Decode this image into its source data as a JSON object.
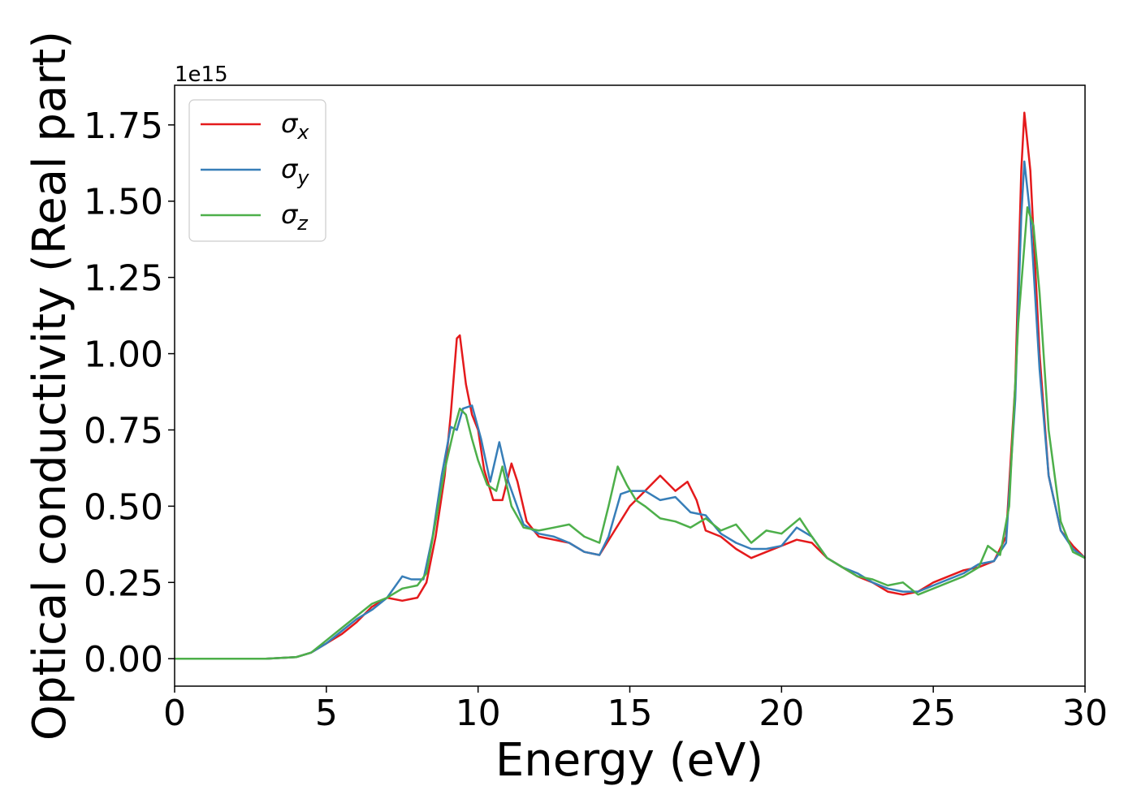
{
  "chart_data": {
    "type": "line",
    "xlabel": "Energy (eV)",
    "ylabel": "Optical conductivity (Real part)",
    "y_offset_label": "1e15",
    "xlim": [
      0,
      30
    ],
    "ylim": [
      -0.09,
      1.88
    ],
    "x_ticks": [
      0,
      5,
      10,
      15,
      20,
      25,
      30
    ],
    "x_tick_labels": [
      "0",
      "5",
      "10",
      "15",
      "20",
      "25",
      "30"
    ],
    "y_ticks": [
      0.0,
      0.25,
      0.5,
      0.75,
      1.0,
      1.25,
      1.5,
      1.75
    ],
    "y_tick_labels": [
      "0.00",
      "0.25",
      "0.50",
      "0.75",
      "1.00",
      "1.25",
      "1.50",
      "1.75"
    ],
    "grid": false,
    "legend_position": "top-left",
    "series": [
      {
        "name": "σ",
        "subscript": "x",
        "color": "#e41a1c",
        "points": [
          [
            0,
            0
          ],
          [
            1,
            0
          ],
          [
            2,
            0
          ],
          [
            3,
            0
          ],
          [
            4,
            0.005
          ],
          [
            4.5,
            0.02
          ],
          [
            5,
            0.05
          ],
          [
            5.5,
            0.08
          ],
          [
            6,
            0.12
          ],
          [
            6.5,
            0.17
          ],
          [
            7,
            0.2
          ],
          [
            7.5,
            0.19
          ],
          [
            8,
            0.2
          ],
          [
            8.3,
            0.25
          ],
          [
            8.6,
            0.4
          ],
          [
            8.9,
            0.6
          ],
          [
            9.1,
            0.8
          ],
          [
            9.3,
            1.05
          ],
          [
            9.4,
            1.06
          ],
          [
            9.6,
            0.9
          ],
          [
            9.8,
            0.8
          ],
          [
            10,
            0.75
          ],
          [
            10.2,
            0.62
          ],
          [
            10.5,
            0.52
          ],
          [
            10.8,
            0.52
          ],
          [
            11.1,
            0.64
          ],
          [
            11.3,
            0.58
          ],
          [
            11.6,
            0.45
          ],
          [
            12,
            0.4
          ],
          [
            12.5,
            0.39
          ],
          [
            13,
            0.38
          ],
          [
            13.5,
            0.35
          ],
          [
            14,
            0.34
          ],
          [
            14.5,
            0.42
          ],
          [
            15,
            0.5
          ],
          [
            15.5,
            0.55
          ],
          [
            16,
            0.6
          ],
          [
            16.5,
            0.55
          ],
          [
            16.9,
            0.58
          ],
          [
            17.2,
            0.52
          ],
          [
            17.5,
            0.42
          ],
          [
            18,
            0.4
          ],
          [
            18.5,
            0.36
          ],
          [
            19,
            0.33
          ],
          [
            19.5,
            0.35
          ],
          [
            20,
            0.37
          ],
          [
            20.5,
            0.39
          ],
          [
            21,
            0.38
          ],
          [
            21.5,
            0.33
          ],
          [
            22,
            0.3
          ],
          [
            22.5,
            0.27
          ],
          [
            23,
            0.25
          ],
          [
            23.5,
            0.22
          ],
          [
            24,
            0.21
          ],
          [
            24.5,
            0.22
          ],
          [
            25,
            0.25
          ],
          [
            25.5,
            0.27
          ],
          [
            26,
            0.29
          ],
          [
            26.5,
            0.3
          ],
          [
            27,
            0.32
          ],
          [
            27.4,
            0.4
          ],
          [
            27.7,
            0.9
          ],
          [
            27.9,
            1.6
          ],
          [
            28,
            1.79
          ],
          [
            28.2,
            1.6
          ],
          [
            28.5,
            1.0
          ],
          [
            28.8,
            0.6
          ],
          [
            29.2,
            0.42
          ],
          [
            29.6,
            0.37
          ],
          [
            30,
            0.33
          ]
        ]
      },
      {
        "name": "σ",
        "subscript": "y",
        "color": "#377eb8",
        "points": [
          [
            0,
            0
          ],
          [
            1,
            0
          ],
          [
            2,
            0
          ],
          [
            3,
            0
          ],
          [
            4,
            0.005
          ],
          [
            4.5,
            0.02
          ],
          [
            5,
            0.05
          ],
          [
            5.5,
            0.09
          ],
          [
            6,
            0.13
          ],
          [
            6.5,
            0.16
          ],
          [
            7,
            0.2
          ],
          [
            7.5,
            0.27
          ],
          [
            7.8,
            0.26
          ],
          [
            8.2,
            0.26
          ],
          [
            8.5,
            0.4
          ],
          [
            8.8,
            0.6
          ],
          [
            9.1,
            0.76
          ],
          [
            9.3,
            0.75
          ],
          [
            9.5,
            0.82
          ],
          [
            9.8,
            0.83
          ],
          [
            10.1,
            0.72
          ],
          [
            10.4,
            0.58
          ],
          [
            10.7,
            0.71
          ],
          [
            11,
            0.58
          ],
          [
            11.5,
            0.44
          ],
          [
            12,
            0.41
          ],
          [
            12.5,
            0.4
          ],
          [
            13,
            0.38
          ],
          [
            13.5,
            0.35
          ],
          [
            14,
            0.34
          ],
          [
            14.3,
            0.4
          ],
          [
            14.7,
            0.54
          ],
          [
            15,
            0.55
          ],
          [
            15.5,
            0.55
          ],
          [
            16,
            0.52
          ],
          [
            16.5,
            0.53
          ],
          [
            17,
            0.48
          ],
          [
            17.5,
            0.47
          ],
          [
            18,
            0.41
          ],
          [
            18.5,
            0.38
          ],
          [
            19,
            0.36
          ],
          [
            19.5,
            0.36
          ],
          [
            20,
            0.37
          ],
          [
            20.5,
            0.43
          ],
          [
            21,
            0.4
          ],
          [
            21.5,
            0.33
          ],
          [
            22,
            0.3
          ],
          [
            22.5,
            0.28
          ],
          [
            23,
            0.25
          ],
          [
            23.5,
            0.23
          ],
          [
            24,
            0.22
          ],
          [
            24.5,
            0.22
          ],
          [
            25,
            0.24
          ],
          [
            25.5,
            0.26
          ],
          [
            26,
            0.28
          ],
          [
            26.5,
            0.31
          ],
          [
            27,
            0.32
          ],
          [
            27.4,
            0.38
          ],
          [
            27.7,
            0.85
          ],
          [
            27.9,
            1.45
          ],
          [
            28,
            1.63
          ],
          [
            28.2,
            1.45
          ],
          [
            28.5,
            0.95
          ],
          [
            28.8,
            0.6
          ],
          [
            29.2,
            0.42
          ],
          [
            29.6,
            0.36
          ],
          [
            30,
            0.33
          ]
        ]
      },
      {
        "name": "σ",
        "subscript": "z",
        "color": "#4daf4a",
        "points": [
          [
            0,
            0
          ],
          [
            1,
            0
          ],
          [
            2,
            0
          ],
          [
            3,
            0
          ],
          [
            4,
            0.005
          ],
          [
            4.5,
            0.02
          ],
          [
            5,
            0.06
          ],
          [
            5.5,
            0.1
          ],
          [
            6,
            0.14
          ],
          [
            6.5,
            0.18
          ],
          [
            7,
            0.2
          ],
          [
            7.5,
            0.23
          ],
          [
            8,
            0.24
          ],
          [
            8.3,
            0.28
          ],
          [
            8.6,
            0.45
          ],
          [
            8.9,
            0.62
          ],
          [
            9.2,
            0.75
          ],
          [
            9.4,
            0.82
          ],
          [
            9.6,
            0.8
          ],
          [
            9.8,
            0.72
          ],
          [
            10,
            0.65
          ],
          [
            10.3,
            0.57
          ],
          [
            10.6,
            0.55
          ],
          [
            10.8,
            0.63
          ],
          [
            11.1,
            0.5
          ],
          [
            11.5,
            0.43
          ],
          [
            12,
            0.42
          ],
          [
            12.5,
            0.43
          ],
          [
            13,
            0.44
          ],
          [
            13.5,
            0.4
          ],
          [
            14,
            0.38
          ],
          [
            14.3,
            0.5
          ],
          [
            14.6,
            0.63
          ],
          [
            14.9,
            0.57
          ],
          [
            15.2,
            0.52
          ],
          [
            15.5,
            0.5
          ],
          [
            16,
            0.46
          ],
          [
            16.5,
            0.45
          ],
          [
            17,
            0.43
          ],
          [
            17.5,
            0.46
          ],
          [
            18,
            0.42
          ],
          [
            18.5,
            0.44
          ],
          [
            19,
            0.38
          ],
          [
            19.5,
            0.42
          ],
          [
            20,
            0.41
          ],
          [
            20.6,
            0.46
          ],
          [
            21,
            0.4
          ],
          [
            21.5,
            0.33
          ],
          [
            22,
            0.3
          ],
          [
            22.5,
            0.27
          ],
          [
            23,
            0.26
          ],
          [
            23.5,
            0.24
          ],
          [
            24,
            0.25
          ],
          [
            24.5,
            0.21
          ],
          [
            25,
            0.23
          ],
          [
            25.5,
            0.25
          ],
          [
            26,
            0.27
          ],
          [
            26.5,
            0.3
          ],
          [
            26.8,
            0.37
          ],
          [
            27.2,
            0.34
          ],
          [
            27.5,
            0.5
          ],
          [
            27.8,
            1.1
          ],
          [
            28.1,
            1.48
          ],
          [
            28.3,
            1.42
          ],
          [
            28.5,
            1.2
          ],
          [
            28.8,
            0.75
          ],
          [
            29.2,
            0.45
          ],
          [
            29.6,
            0.35
          ],
          [
            30,
            0.33
          ]
        ]
      }
    ]
  }
}
